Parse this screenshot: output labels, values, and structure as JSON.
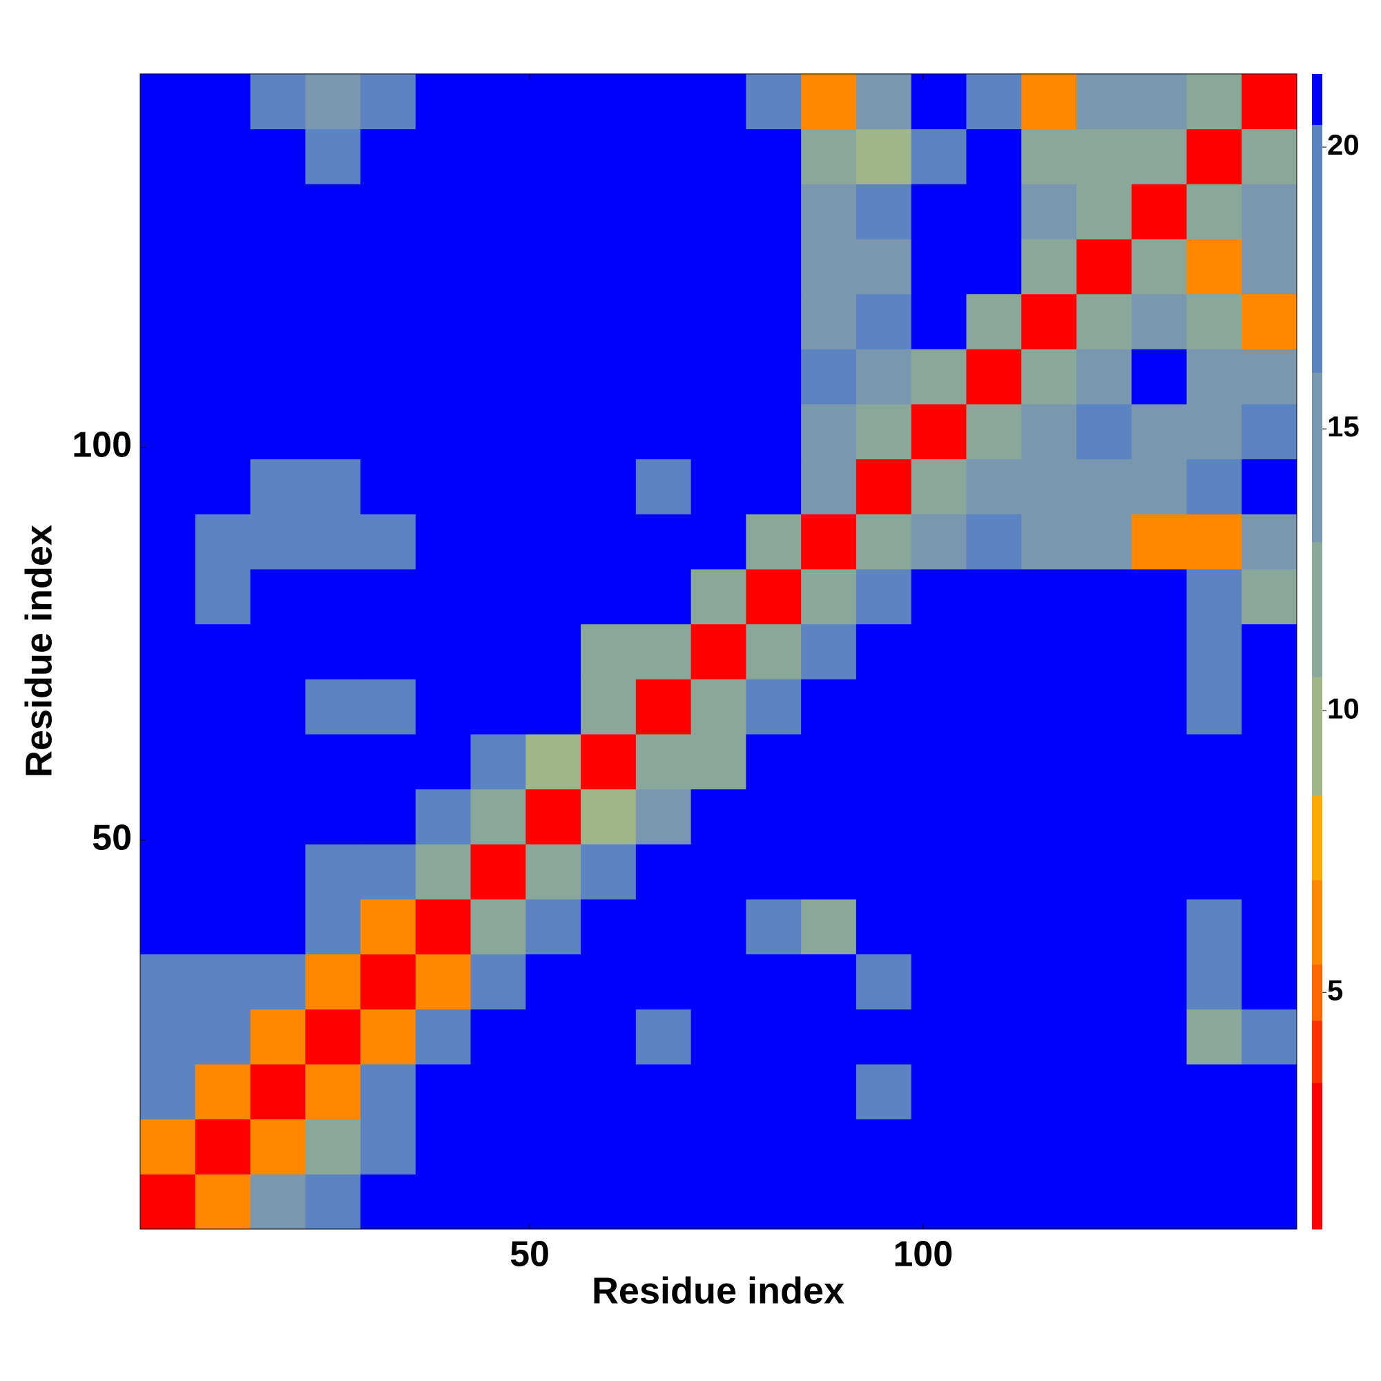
{
  "chart_data": {
    "type": "heatmap",
    "xlabel": "Residue index",
    "ylabel": "Residue index",
    "bins": [
      0.5,
      7.5,
      14.5,
      21.5,
      28.5,
      35.5,
      42.5,
      49.5,
      56.5,
      63.5,
      70.5,
      77.5,
      84.5,
      91.5,
      98.5,
      105.5,
      112.5,
      119.5,
      126.5,
      133.5,
      140.5,
      147.5
    ],
    "xlim": [
      0.5,
      147.5
    ],
    "ylim": [
      0.5,
      147.5
    ],
    "xticks": [
      50,
      100
    ],
    "yticks": [
      50,
      100
    ],
    "values": [
      [
        3,
        7,
        15,
        18,
        21,
        21,
        21,
        21,
        21,
        21,
        21,
        21,
        21,
        21,
        21,
        21,
        21,
        21,
        21,
        21,
        21
      ],
      [
        7,
        3,
        7,
        13,
        18,
        21,
        21,
        21,
        21,
        21,
        21,
        21,
        21,
        21,
        21,
        21,
        21,
        21,
        21,
        21,
        21
      ],
      [
        17,
        7,
        3,
        7,
        17,
        21,
        21,
        21,
        21,
        21,
        21,
        21,
        21,
        19,
        21,
        21,
        21,
        21,
        21,
        21,
        21
      ],
      [
        18,
        17,
        7,
        3,
        7,
        17,
        21,
        21,
        21,
        19,
        21,
        21,
        21,
        21,
        21,
        21,
        21,
        21,
        21,
        12,
        18
      ],
      [
        19,
        18,
        18,
        7,
        3,
        7,
        17,
        21,
        21,
        21,
        21,
        21,
        21,
        18,
        21,
        21,
        21,
        21,
        21,
        17,
        21
      ],
      [
        21,
        21,
        21,
        17,
        7,
        3,
        12,
        19,
        21,
        21,
        21,
        18,
        12,
        21,
        21,
        21,
        21,
        21,
        21,
        19,
        21
      ],
      [
        21,
        21,
        21,
        19,
        19,
        13,
        3,
        12,
        19,
        21,
        21,
        21,
        21,
        21,
        21,
        21,
        21,
        21,
        21,
        21,
        21
      ],
      [
        21,
        21,
        21,
        21,
        21,
        19,
        12,
        3,
        10,
        16,
        21,
        21,
        21,
        21,
        21,
        21,
        21,
        21,
        21,
        21,
        21
      ],
      [
        21,
        21,
        21,
        21,
        21,
        21,
        19,
        10,
        3,
        13,
        12,
        21,
        21,
        21,
        21,
        21,
        21,
        21,
        21,
        21,
        21
      ],
      [
        21,
        21,
        21,
        19,
        19,
        21,
        21,
        21,
        13,
        3,
        12,
        18,
        21,
        21,
        21,
        21,
        21,
        21,
        21,
        19,
        21
      ],
      [
        21,
        21,
        21,
        21,
        21,
        21,
        21,
        21,
        12,
        12,
        3,
        13,
        19,
        21,
        21,
        21,
        21,
        21,
        21,
        18,
        21
      ],
      [
        21,
        19,
        21,
        21,
        21,
        21,
        21,
        21,
        21,
        21,
        13,
        3,
        12,
        18,
        21,
        21,
        21,
        21,
        21,
        17,
        13
      ],
      [
        21,
        19,
        18,
        17,
        17,
        21,
        21,
        21,
        21,
        21,
        21,
        12,
        3,
        12,
        16,
        17,
        16,
        15,
        7,
        7,
        16
      ],
      [
        21,
        21,
        18,
        17,
        21,
        21,
        21,
        21,
        21,
        19,
        21,
        21,
        14,
        3,
        11,
        15,
        15,
        16,
        14,
        17,
        21
      ],
      [
        21,
        21,
        21,
        21,
        21,
        21,
        21,
        21,
        21,
        21,
        21,
        21,
        16,
        11,
        3,
        11,
        16,
        17,
        15,
        16,
        17
      ],
      [
        21,
        21,
        21,
        21,
        21,
        21,
        21,
        21,
        21,
        21,
        21,
        21,
        17,
        15,
        11,
        3,
        12,
        16,
        21,
        16,
        14
      ],
      [
        21,
        21,
        21,
        21,
        21,
        21,
        21,
        21,
        21,
        21,
        21,
        21,
        16,
        17,
        21,
        12,
        3,
        12,
        16,
        11,
        7
      ],
      [
        21,
        21,
        21,
        21,
        21,
        21,
        21,
        21,
        21,
        21,
        21,
        21,
        14,
        16,
        21,
        21,
        12,
        3,
        11,
        7,
        15
      ],
      [
        21,
        21,
        21,
        21,
        21,
        21,
        21,
        21,
        21,
        21,
        21,
        21,
        15,
        17,
        21,
        21,
        16,
        13,
        3,
        12,
        15
      ],
      [
        21,
        21,
        21,
        18,
        21,
        21,
        21,
        21,
        21,
        21,
        21,
        21,
        13,
        10,
        17,
        21,
        13,
        11,
        13,
        3,
        11
      ],
      [
        21,
        21,
        19,
        16,
        17,
        21,
        21,
        21,
        21,
        21,
        21,
        18,
        7,
        14,
        21,
        17,
        7,
        14,
        15,
        12,
        3
      ]
    ],
    "zlim": [
      0.8,
      21.3
    ],
    "colorbar_ticks": [
      5,
      10,
      15,
      20
    ],
    "levels": [
      0.8,
      3.4,
      4.5,
      5.5,
      7,
      8.5,
      10.6,
      13,
      16,
      20.4,
      21.3
    ],
    "colors": [
      "#ff0000",
      "#ff3300",
      "#ff6600",
      "#ff8800",
      "#ffaa00",
      "#9fb58a",
      "#8aa89a",
      "#7a97b0",
      "#5b84c0",
      "#0000ff"
    ]
  }
}
